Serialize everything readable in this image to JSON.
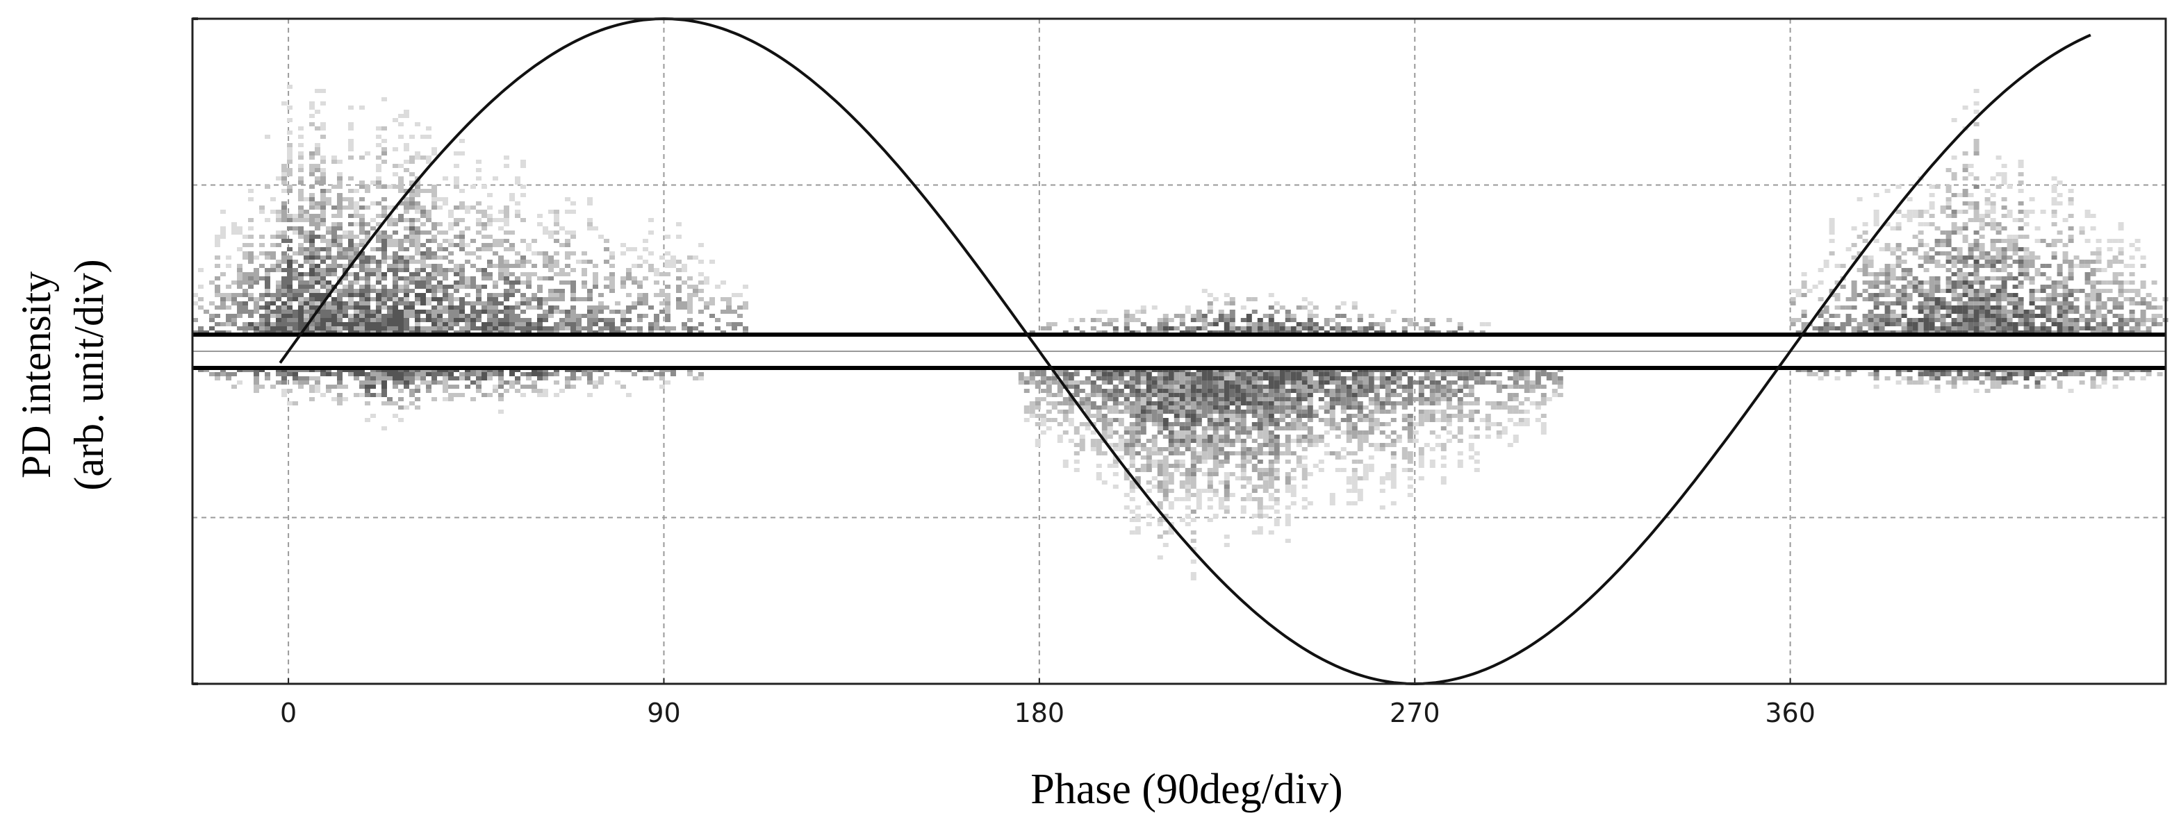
{
  "chart_data": {
    "type": "scatter",
    "subtype": "phase-resolved partial discharge pattern with reference sine",
    "xlabel": "Phase (90deg/div)",
    "ylabel_line1": "PD intensity",
    "ylabel_line2": "(arb. unit/div)",
    "xlim": [
      -23,
      450
    ],
    "ylim": [
      -2,
      2
    ],
    "x_ticks": [
      0,
      90,
      180,
      270,
      360
    ],
    "x_tick_labels": [
      "0",
      "90",
      "180",
      "270",
      "360"
    ],
    "y_gridlines": [
      -1,
      0,
      1
    ],
    "grid": true,
    "reference_wave": {
      "type": "sine",
      "amplitude": 2,
      "phase_start": -2,
      "phase_end": 432
    },
    "noise_band": [
      -0.1,
      0.1
    ],
    "pd_clusters": [
      {
        "name": "positive half-cycle cluster A",
        "phase_start": -23,
        "phase_end": 110,
        "phase_peak": 5,
        "polarity": "positive",
        "max_amplitude": 1.6,
        "density_peak": 0.12
      },
      {
        "name": "negative half-cycle cluster",
        "phase_start": 175,
        "phase_end": 305,
        "phase_peak": 215,
        "polarity": "negative",
        "max_amplitude": 1.25,
        "density_peak": 0.25
      },
      {
        "name": "positive half-cycle cluster B",
        "phase_start": 360,
        "phase_end": 450,
        "phase_peak": 405,
        "polarity": "positive",
        "max_amplitude": 1.45,
        "density_peak": 0.12
      },
      {
        "name": "minor positive cluster",
        "phase_start": 175,
        "phase_end": 290,
        "phase_peak": 230,
        "polarity": "positive",
        "max_amplitude": 0.3,
        "density_peak": 0.02
      },
      {
        "name": "minor negative cluster A",
        "phase_start": -23,
        "phase_end": 100,
        "phase_peak": 20,
        "polarity": "negative",
        "max_amplitude": 0.35,
        "density_peak": 0.02
      },
      {
        "name": "minor negative cluster B",
        "phase_start": 360,
        "phase_end": 450,
        "phase_peak": 410,
        "polarity": "negative",
        "max_amplitude": 0.2,
        "density_peak": 0.02
      }
    ]
  }
}
